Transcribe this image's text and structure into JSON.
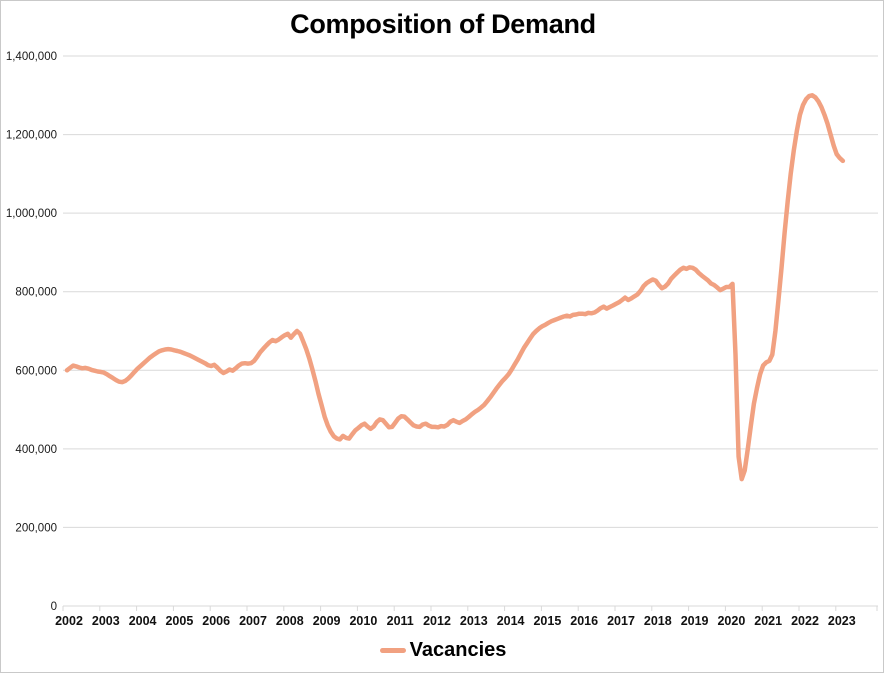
{
  "page": {
    "background": "#ffffff",
    "border_color": "#c9c9c9",
    "gridline_color": "#d9d9d9"
  },
  "chart_data": {
    "type": "line",
    "title": "Composition of Demand",
    "xlabel": "",
    "ylabel": "",
    "ylim": [
      0,
      1400000
    ],
    "grid": true,
    "legend_position": "bottom",
    "y_tick_labels": [
      "0",
      "200,000",
      "400,000",
      "600,000",
      "800,000",
      "1,000,000",
      "1,200,000",
      "1,400,000"
    ],
    "y_tick_values": [
      0,
      200000,
      400000,
      600000,
      800000,
      1000000,
      1200000,
      1400000
    ],
    "x_tick_labels": [
      "2002",
      "2003",
      "2004",
      "2005",
      "2006",
      "2007",
      "2008",
      "2009",
      "2010",
      "2011",
      "2012",
      "2013",
      "2014",
      "2015",
      "2016",
      "2017",
      "2018",
      "2019",
      "2020",
      "2021",
      "2022",
      "2023"
    ],
    "series": [
      {
        "name": "Vacancies",
        "color": "#F1A181",
        "start": "2002-01",
        "frequency": "monthly",
        "values": [
          600000,
          606000,
          612000,
          610000,
          607000,
          605000,
          606000,
          604000,
          601000,
          599000,
          597000,
          596000,
          594000,
          590000,
          585000,
          580000,
          575000,
          571000,
          570000,
          573000,
          579000,
          587000,
          596000,
          604000,
          611000,
          618000,
          625000,
          632000,
          638000,
          643000,
          648000,
          651000,
          653000,
          654000,
          653000,
          651000,
          649000,
          647000,
          644000,
          641000,
          638000,
          634000,
          630000,
          626000,
          622000,
          618000,
          613000,
          611000,
          614000,
          607000,
          599000,
          593000,
          597000,
          602000,
          599000,
          605000,
          612000,
          617000,
          618000,
          617000,
          618000,
          624000,
          634000,
          646000,
          655000,
          663000,
          671000,
          677000,
          674000,
          678000,
          684000,
          689000,
          693000,
          683000,
          692000,
          700000,
          693000,
          674000,
          654000,
          630000,
          603000,
          573000,
          540000,
          512000,
          482000,
          460000,
          444000,
          432000,
          426000,
          424000,
          433000,
          428000,
          426000,
          437000,
          447000,
          453000,
          460000,
          464000,
          457000,
          451000,
          457000,
          468000,
          475000,
          473000,
          464000,
          455000,
          456000,
          466000,
          477000,
          483000,
          482000,
          475000,
          467000,
          460000,
          457000,
          456000,
          462000,
          464000,
          459000,
          456000,
          456000,
          455000,
          458000,
          457000,
          461000,
          469000,
          473000,
          469000,
          466000,
          471000,
          475000,
          481000,
          488000,
          494000,
          499000,
          505000,
          512000,
          521000,
          531000,
          542000,
          553000,
          563000,
          573000,
          581000,
          590000,
          602000,
          615000,
          628000,
          643000,
          657000,
          669000,
          681000,
          692000,
          700000,
          707000,
          712000,
          716000,
          721000,
          725000,
          728000,
          731000,
          734000,
          737000,
          739000,
          737000,
          741000,
          742000,
          744000,
          744000,
          743000,
          746000,
          745000,
          747000,
          752000,
          758000,
          762000,
          757000,
          761000,
          765000,
          769000,
          773000,
          779000,
          785000,
          779000,
          783000,
          788000,
          793000,
          802000,
          814000,
          822000,
          827000,
          831000,
          828000,
          817000,
          809000,
          813000,
          821000,
          833000,
          841000,
          849000,
          856000,
          861000,
          858000,
          862000,
          861000,
          856000,
          848000,
          841000,
          835000,
          829000,
          821000,
          817000,
          811000,
          804000,
          808000,
          812000,
          812000,
          820000,
          640000,
          380000,
          323000,
          345000,
          400000,
          460000,
          515000,
          555000,
          590000,
          612000,
          620000,
          624000,
          640000,
          700000,
          780000,
          860000,
          950000,
          1030000,
          1100000,
          1160000,
          1210000,
          1250000,
          1275000,
          1290000,
          1298000,
          1300000,
          1295000,
          1285000,
          1270000,
          1250000,
          1228000,
          1200000,
          1172000,
          1150000,
          1140000,
          1133000
        ]
      }
    ]
  },
  "legend": {
    "label": "Vacancies"
  }
}
